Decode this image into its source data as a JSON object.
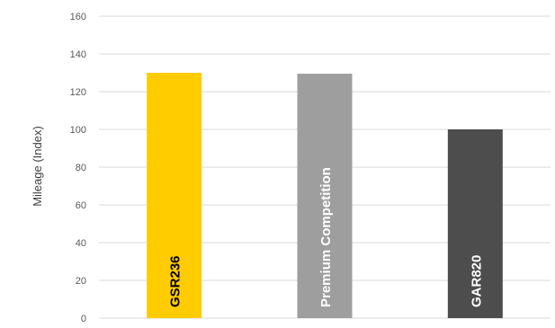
{
  "chart_data": {
    "type": "bar",
    "title": "",
    "xlabel": "",
    "ylabel": "Mileage (Index)",
    "categories": [
      "GSR236",
      "Premium Competition",
      "GAR820"
    ],
    "values": [
      130,
      129.5,
      100
    ],
    "ylim": [
      0,
      160
    ],
    "yticks": [
      0,
      20,
      40,
      60,
      80,
      100,
      120,
      140,
      160
    ],
    "grid": true,
    "legend": "none",
    "bar_colors": [
      "#FFCC00",
      "#9E9E9E",
      "#4D4D4D"
    ],
    "label_colors": [
      "#000000",
      "#FFFFFF",
      "#FFFFFF"
    ],
    "grid_color": "#D9D9D9",
    "tick_label_color": "#595959"
  }
}
